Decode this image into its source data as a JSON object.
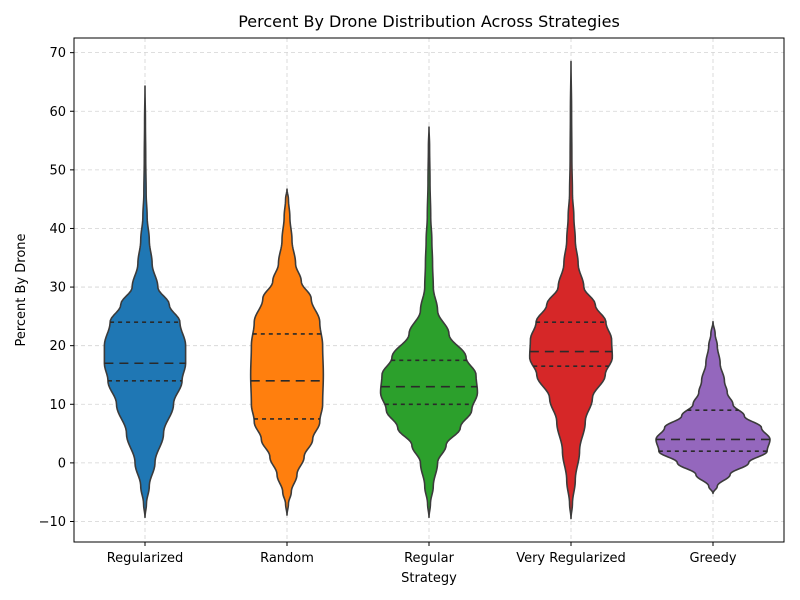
{
  "chart_data": {
    "type": "violin",
    "title": "Percent By Drone Distribution Across Strategies",
    "xlabel": "Strategy",
    "ylabel": "Percent By Drone",
    "ylim": [
      -13.5,
      72.5
    ],
    "yticks": [
      -10,
      0,
      10,
      20,
      30,
      40,
      50,
      60,
      70
    ],
    "ytick_labels": [
      "−10",
      "0",
      "10",
      "20",
      "30",
      "40",
      "50",
      "60",
      "70"
    ],
    "grid": true,
    "inner": "quartile",
    "categories": [
      "Regularized",
      "Random",
      "Regular",
      "Very Regularized",
      "Greedy"
    ],
    "series": [
      {
        "category": "Regularized",
        "color": "#1f77b4",
        "quartiles": [
          14,
          17,
          24
        ],
        "range": [
          -9.3,
          64.3
        ],
        "density_profile": [
          [
            -9.3,
            0
          ],
          [
            -7,
            0.01
          ],
          [
            -4,
            0.03
          ],
          [
            0,
            0.07
          ],
          [
            5,
            0.13
          ],
          [
            10,
            0.2
          ],
          [
            14,
            0.26
          ],
          [
            17,
            0.285
          ],
          [
            20,
            0.285
          ],
          [
            24,
            0.245
          ],
          [
            27,
            0.17
          ],
          [
            30,
            0.09
          ],
          [
            34,
            0.05
          ],
          [
            38,
            0.03
          ],
          [
            42,
            0.015
          ],
          [
            46,
            0.008
          ],
          [
            52,
            0.005
          ],
          [
            58,
            0.003
          ],
          [
            64.3,
            0
          ]
        ]
      },
      {
        "category": "Random",
        "color": "#ff7f0e",
        "quartiles": [
          7.5,
          14,
          22
        ],
        "range": [
          -8.9,
          46.7
        ],
        "density_profile": [
          [
            -8.9,
            0
          ],
          [
            -7,
            0.01
          ],
          [
            -5,
            0.03
          ],
          [
            -2,
            0.07
          ],
          [
            1,
            0.12
          ],
          [
            4,
            0.18
          ],
          [
            7,
            0.23
          ],
          [
            10,
            0.25
          ],
          [
            15,
            0.255
          ],
          [
            20,
            0.25
          ],
          [
            24,
            0.23
          ],
          [
            28,
            0.17
          ],
          [
            31,
            0.1
          ],
          [
            34,
            0.06
          ],
          [
            38,
            0.035
          ],
          [
            42,
            0.02
          ],
          [
            45,
            0.01
          ],
          [
            46.7,
            0
          ]
        ]
      },
      {
        "category": "Regular",
        "color": "#2ca02c",
        "quartiles": [
          10,
          13,
          17.5
        ],
        "range": [
          -9.3,
          57.3
        ],
        "density_profile": [
          [
            -9.3,
            0
          ],
          [
            -7,
            0.01
          ],
          [
            -4,
            0.03
          ],
          [
            0,
            0.06
          ],
          [
            3,
            0.12
          ],
          [
            6,
            0.22
          ],
          [
            9,
            0.3
          ],
          [
            12,
            0.34
          ],
          [
            15,
            0.33
          ],
          [
            18,
            0.26
          ],
          [
            22,
            0.14
          ],
          [
            26,
            0.06
          ],
          [
            30,
            0.03
          ],
          [
            34,
            0.025
          ],
          [
            38,
            0.02
          ],
          [
            42,
            0.012
          ],
          [
            48,
            0.007
          ],
          [
            54,
            0.004
          ],
          [
            57.3,
            0
          ]
        ]
      },
      {
        "category": "Very Regularized",
        "color": "#d62728",
        "quartiles": [
          16.5,
          19,
          24
        ],
        "range": [
          -9.5,
          68.5
        ],
        "density_profile": [
          [
            -9.5,
            0
          ],
          [
            -7,
            0.01
          ],
          [
            -3,
            0.03
          ],
          [
            2,
            0.06
          ],
          [
            7,
            0.1
          ],
          [
            11,
            0.15
          ],
          [
            15,
            0.24
          ],
          [
            18,
            0.29
          ],
          [
            21,
            0.285
          ],
          [
            24,
            0.245
          ],
          [
            27,
            0.17
          ],
          [
            30,
            0.09
          ],
          [
            34,
            0.05
          ],
          [
            38,
            0.03
          ],
          [
            42,
            0.02
          ],
          [
            46,
            0.01
          ],
          [
            52,
            0.006
          ],
          [
            60,
            0.004
          ],
          [
            68.5,
            0
          ]
        ]
      },
      {
        "category": "Greedy",
        "color": "#9467bd",
        "quartiles": [
          2,
          4,
          9
        ],
        "range": [
          -5.2,
          24.1
        ],
        "density_profile": [
          [
            -5.2,
            0
          ],
          [
            -4,
            0.03
          ],
          [
            -2,
            0.12
          ],
          [
            0,
            0.25
          ],
          [
            2,
            0.38
          ],
          [
            4,
            0.4
          ],
          [
            6,
            0.34
          ],
          [
            8,
            0.22
          ],
          [
            10,
            0.14
          ],
          [
            12,
            0.1
          ],
          [
            14,
            0.08
          ],
          [
            17,
            0.05
          ],
          [
            20,
            0.03
          ],
          [
            22,
            0.015
          ],
          [
            24.1,
            0
          ]
        ]
      }
    ]
  }
}
